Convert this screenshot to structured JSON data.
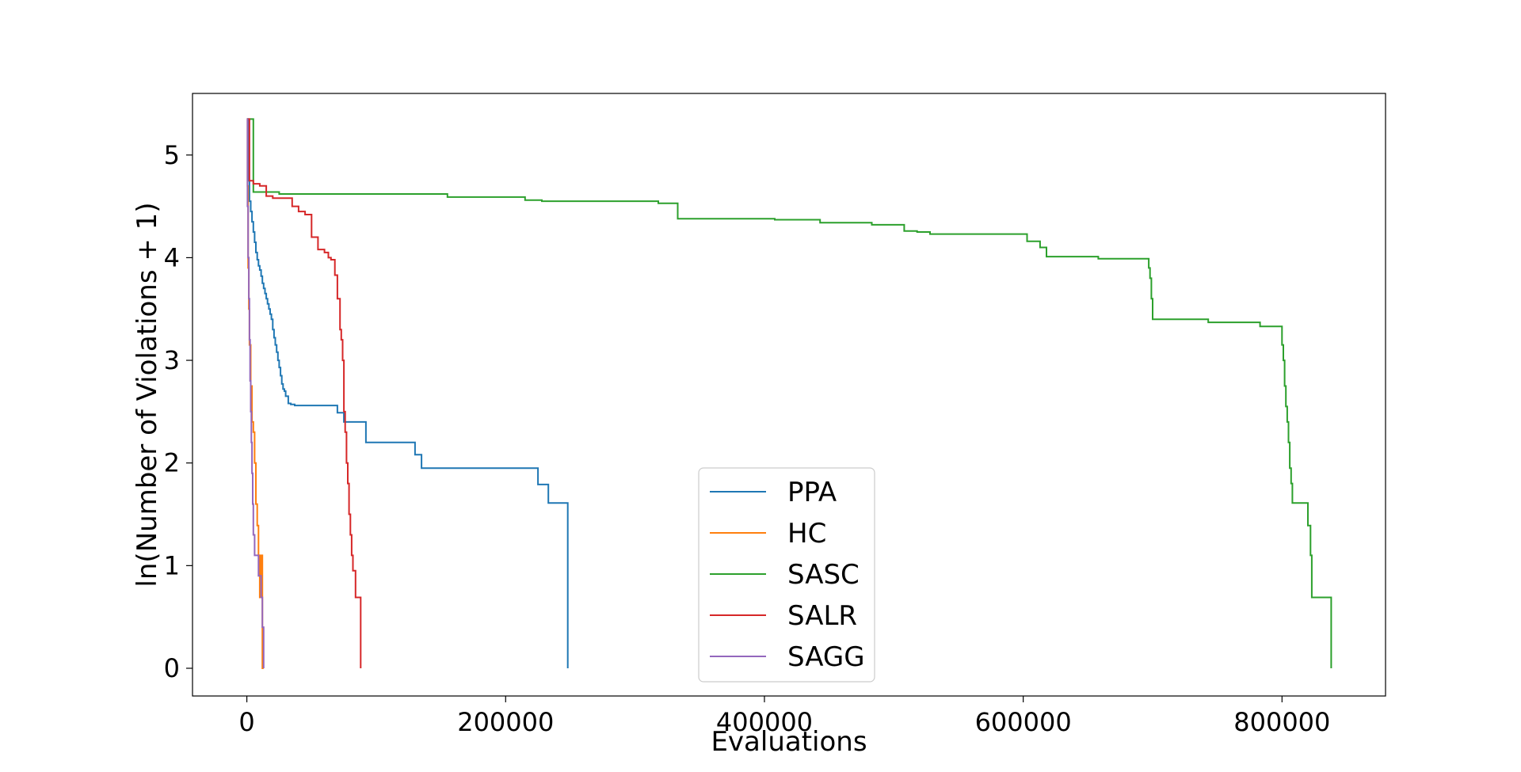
{
  "chart_data": {
    "type": "line",
    "title": "",
    "xlabel": "Evaluations",
    "ylabel": "ln(Number of Violations + 1)",
    "xlim": [
      -42000,
      880000
    ],
    "ylim": [
      -0.27,
      5.6
    ],
    "xticks": [
      0,
      200000,
      400000,
      600000,
      800000
    ],
    "xtick_labels": [
      "0",
      "200000",
      "400000",
      "600000",
      "800000"
    ],
    "yticks": [
      0,
      1,
      2,
      3,
      4,
      5
    ],
    "ytick_labels": [
      "0",
      "1",
      "2",
      "3",
      "4",
      "5"
    ],
    "grid": false,
    "legend_position": "lower center",
    "step": true,
    "series": [
      {
        "name": "PPA",
        "color": "#1f77b4",
        "x": [
          0,
          1000,
          2000,
          3000,
          4000,
          5000,
          6000,
          7000,
          8000,
          9000,
          10000,
          11000,
          12000,
          13000,
          14000,
          15000,
          16000,
          17000,
          18000,
          19000,
          20000,
          21000,
          22000,
          23000,
          24000,
          25000,
          26000,
          27000,
          28000,
          29000,
          30000,
          32000,
          34000,
          37000,
          70000,
          75000,
          92000,
          130000,
          135000,
          225000,
          233000,
          248000
        ],
        "y": [
          5.35,
          4.75,
          4.55,
          4.45,
          4.35,
          4.25,
          4.15,
          4.05,
          3.98,
          3.92,
          3.88,
          3.82,
          3.75,
          3.7,
          3.65,
          3.6,
          3.55,
          3.5,
          3.45,
          3.4,
          3.3,
          3.22,
          3.15,
          3.08,
          3.0,
          2.93,
          2.85,
          2.77,
          2.72,
          2.7,
          2.65,
          2.58,
          2.57,
          2.56,
          2.49,
          2.4,
          2.2,
          2.08,
          1.95,
          1.79,
          1.61,
          0.0
        ]
      },
      {
        "name": "HC",
        "color": "#ff7f0e",
        "x": [
          0,
          500,
          1000,
          1500,
          2000,
          3000,
          4000,
          5000,
          6000,
          7000,
          8000,
          9000,
          10000,
          11000,
          12000,
          13000
        ],
        "y": [
          5.35,
          4.7,
          3.9,
          3.5,
          3.15,
          2.75,
          2.4,
          2.3,
          2.0,
          1.6,
          1.39,
          1.1,
          0.69,
          1.1,
          0.0,
          0.0
        ]
      },
      {
        "name": "SASC",
        "color": "#2ca02c",
        "x": [
          0,
          5000,
          25000,
          155000,
          215000,
          228000,
          318000,
          333000,
          408000,
          443000,
          483000,
          508000,
          518000,
          528000,
          603000,
          613000,
          618000,
          658000,
          697000,
          698000,
          699000,
          700000,
          703000,
          743000,
          783000,
          800000,
          801000,
          802000,
          803000,
          804000,
          805000,
          806000,
          807000,
          808000,
          809000,
          810000,
          812000,
          820000,
          822000,
          823000,
          824000,
          838000
        ],
        "y": [
          5.35,
          4.64,
          4.62,
          4.59,
          4.56,
          4.55,
          4.53,
          4.38,
          4.37,
          4.34,
          4.32,
          4.26,
          4.25,
          4.23,
          4.16,
          4.1,
          4.01,
          3.99,
          3.9,
          3.8,
          3.6,
          3.4,
          3.4,
          3.37,
          3.33,
          3.15,
          3.0,
          2.75,
          2.55,
          2.4,
          2.2,
          1.95,
          1.8,
          1.61,
          1.61,
          1.61,
          1.61,
          1.39,
          1.1,
          0.69,
          0.69,
          0.0
        ]
      },
      {
        "name": "SALR",
        "color": "#d62728",
        "x": [
          0,
          2000,
          5000,
          10000,
          15000,
          20000,
          35000,
          40000,
          45000,
          50000,
          55000,
          60000,
          63000,
          65000,
          68000,
          70000,
          72000,
          73000,
          74000,
          75000,
          76000,
          77000,
          78000,
          79000,
          80000,
          81000,
          82000,
          84000,
          88000
        ],
        "y": [
          5.35,
          4.75,
          4.72,
          4.7,
          4.6,
          4.58,
          4.5,
          4.45,
          4.42,
          4.2,
          4.08,
          4.05,
          4.0,
          3.98,
          3.83,
          3.6,
          3.3,
          3.2,
          3.0,
          2.5,
          2.3,
          2.0,
          1.8,
          1.5,
          1.3,
          1.1,
          0.95,
          0.69,
          0.0
        ]
      },
      {
        "name": "SAGG",
        "color": "#9467bd",
        "x": [
          0,
          500,
          1000,
          1500,
          2000,
          2500,
          3000,
          3500,
          4000,
          4500,
          5000,
          6000,
          7000,
          9000,
          11000,
          12000,
          13000
        ],
        "y": [
          5.35,
          4.5,
          4.0,
          3.6,
          3.2,
          2.8,
          2.5,
          2.2,
          1.9,
          1.6,
          1.3,
          1.1,
          1.1,
          0.9,
          0.69,
          0.4,
          0.0
        ]
      }
    ]
  }
}
